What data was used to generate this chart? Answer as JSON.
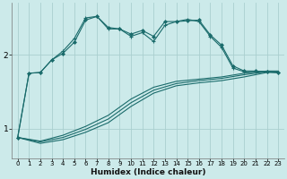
{
  "xlabel": "Humidex (Indice chaleur)",
  "bg_color": "#cceaea",
  "grid_color": "#aacfcf",
  "line_color": "#1a6b6b",
  "xlim": [
    -0.5,
    23.5
  ],
  "ylim": [
    0.6,
    2.7
  ],
  "yticks": [
    1,
    2
  ],
  "xticks": [
    0,
    1,
    2,
    3,
    4,
    5,
    6,
    7,
    8,
    9,
    10,
    11,
    12,
    13,
    14,
    15,
    16,
    17,
    18,
    19,
    20,
    21,
    22,
    23
  ],
  "upper1_x": [
    0,
    1,
    2,
    3,
    4,
    5,
    6,
    7,
    8,
    9,
    10,
    11,
    12,
    13,
    14,
    15,
    16,
    17,
    18,
    19,
    20,
    21,
    22,
    23
  ],
  "upper1_y": [
    0.88,
    1.75,
    1.76,
    1.93,
    2.05,
    2.22,
    2.5,
    2.52,
    2.35,
    2.35,
    2.25,
    2.3,
    2.18,
    2.4,
    2.45,
    2.48,
    2.45,
    2.25,
    2.1,
    1.82,
    1.77,
    1.77,
    1.77,
    1.76
  ],
  "upper2_x": [
    0,
    1,
    2,
    3,
    4,
    5,
    6,
    7,
    8,
    9,
    10,
    11,
    12,
    13,
    14,
    15,
    16,
    17,
    18,
    19,
    20,
    21,
    22,
    23
  ],
  "upper2_y": [
    0.88,
    1.75,
    1.76,
    1.93,
    2.02,
    2.17,
    2.47,
    2.52,
    2.37,
    2.35,
    2.28,
    2.33,
    2.25,
    2.45,
    2.45,
    2.46,
    2.47,
    2.27,
    2.13,
    1.85,
    1.78,
    1.78,
    1.77,
    1.76
  ],
  "lower1_x": [
    0,
    2,
    4,
    6,
    8,
    10,
    12,
    14,
    16,
    18,
    20,
    22,
    23
  ],
  "lower1_y": [
    0.88,
    0.8,
    0.85,
    0.95,
    1.08,
    1.3,
    1.48,
    1.58,
    1.62,
    1.65,
    1.7,
    1.76,
    1.76
  ],
  "lower2_x": [
    0,
    2,
    4,
    6,
    8,
    10,
    12,
    14,
    16,
    18,
    20,
    22,
    23
  ],
  "lower2_y": [
    0.88,
    0.82,
    0.88,
    0.99,
    1.13,
    1.35,
    1.52,
    1.61,
    1.65,
    1.68,
    1.73,
    1.77,
    1.77
  ],
  "lower3_x": [
    0,
    2,
    4,
    6,
    8,
    10,
    12,
    14,
    16,
    18,
    20,
    22,
    23
  ],
  "lower3_y": [
    0.88,
    0.83,
    0.91,
    1.03,
    1.18,
    1.4,
    1.56,
    1.64,
    1.67,
    1.7,
    1.75,
    1.78,
    1.78
  ]
}
